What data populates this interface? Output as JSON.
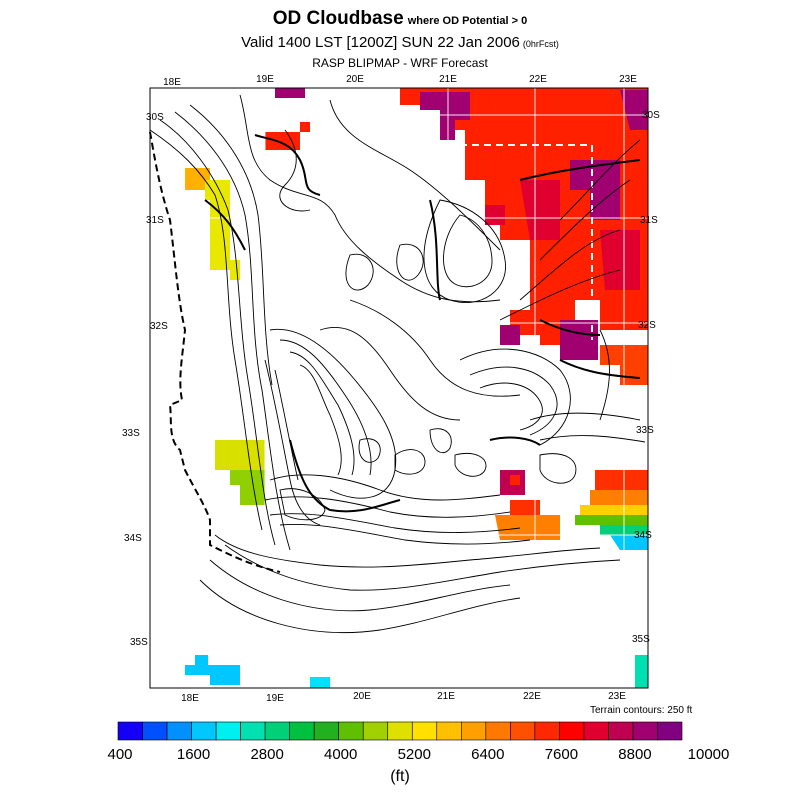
{
  "header": {
    "title": "OD Cloudbase",
    "title_suffix": "where OD Potential > 0",
    "valid_line": "Valid 1400 LST [1200Z] SUN 22 Jan 2006",
    "forecast_hour": "(0hrFcst)",
    "model_line": "RASP BLIPMAP - WRF Forecast"
  },
  "map": {
    "top_lon_labels": [
      "18E",
      "19E",
      "20E",
      "21E",
      "22E",
      "23E"
    ],
    "bottom_lon_labels": [
      "18E",
      "19E",
      "20E",
      "21E",
      "22E",
      "23E"
    ],
    "left_lat_labels": [
      "30S",
      "31S",
      "32S",
      "33S",
      "34S",
      "35S"
    ],
    "right_lat_labels": [
      "30S",
      "31S",
      "32S",
      "33S",
      "34S",
      "35S"
    ],
    "terrain_note": "Terrain contours: 250 ft"
  },
  "colorbar": {
    "colors": [
      "#1400f5",
      "#0050ff",
      "#0090ff",
      "#00c8ff",
      "#00f0f0",
      "#00e0b0",
      "#00d078",
      "#00c040",
      "#20b020",
      "#60c000",
      "#a0d000",
      "#e0e000",
      "#ffe000",
      "#ffc000",
      "#ffa000",
      "#ff7800",
      "#ff5000",
      "#ff2800",
      "#ff0000",
      "#e00030",
      "#c00050",
      "#a00070",
      "#800080"
    ],
    "labels": [
      "400",
      "1600",
      "2800",
      "4000",
      "5200",
      "6400",
      "7600",
      "8800",
      "10000"
    ],
    "unit": "(ft)"
  }
}
